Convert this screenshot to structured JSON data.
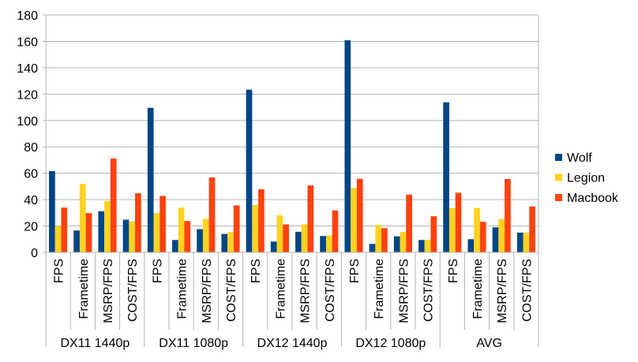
{
  "chart_data": {
    "type": "bar",
    "title": "",
    "xlabel": "",
    "ylabel": "",
    "ylim": [
      0,
      180
    ],
    "yticks": [
      0,
      20,
      40,
      60,
      80,
      100,
      120,
      140,
      160,
      180
    ],
    "grid": true,
    "legend_position": "right",
    "groups": [
      "DX11 1440p",
      "DX11 1080p",
      "DX12 1440p",
      "DX12 1080p",
      "AVG"
    ],
    "subcategories": [
      "FPS",
      "Frametime",
      "MSRP/FPS",
      "COST/FPS"
    ],
    "series": [
      {
        "name": "Wolf",
        "color": "#004586",
        "values": [
          61.6,
          16.6,
          31.2,
          24.8,
          109.6,
          9.4,
          17.6,
          14.0,
          123.4,
          8.2,
          15.6,
          12.4,
          160.8,
          6.4,
          12.2,
          9.4,
          113.8,
          10.0,
          19.0,
          15.0
        ]
      },
      {
        "name": "Legion",
        "color": "#ffd320",
        "values": [
          19.8,
          52.0,
          39.0,
          23.4,
          29.8,
          34.0,
          25.4,
          15.4,
          35.8,
          28.2,
          21.2,
          12.8,
          48.8,
          20.8,
          15.6,
          9.4,
          33.6,
          33.8,
          25.2,
          15.0
        ]
      },
      {
        "name": "Macbook",
        "color": "#ff420e",
        "values": [
          34.0,
          29.8,
          71.2,
          44.8,
          42.8,
          23.8,
          56.8,
          35.6,
          47.8,
          21.2,
          50.8,
          31.8,
          55.8,
          18.4,
          43.8,
          27.4,
          45.2,
          23.2,
          55.6,
          34.8
        ]
      }
    ]
  }
}
